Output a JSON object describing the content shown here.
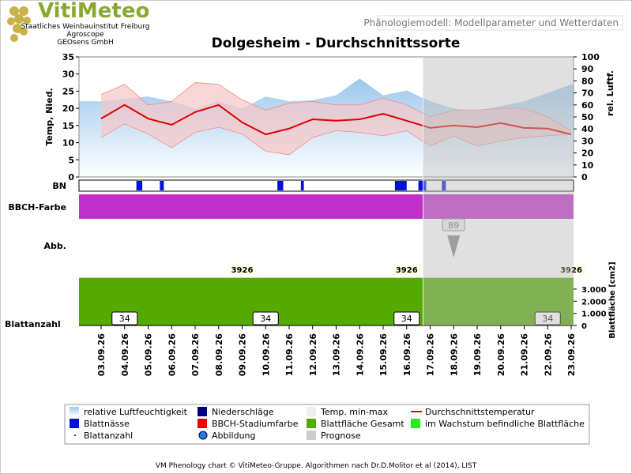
{
  "logo": {
    "name": "VitiMeteo",
    "lines": [
      "Staatliches Weinbauinstitut Freiburg",
      "Agroscope",
      "GEOsens GmbH"
    ]
  },
  "header": "Phänologiemodell: Modellparameter und Wetterdaten",
  "footer": "VM Phenology chart © VitiMeteo-Gruppe. Algorithmen nach Dr.D.Molitor et al (2014), LIST",
  "chart_data": {
    "type": "line",
    "title": "Dolgesheim - Durchschnittssorte",
    "ylabel": "Temp, Nied.",
    "y2label": "rel. Luftf.",
    "categories": [
      "03.09.26",
      "04.09.26",
      "05.09.26",
      "06.09.26",
      "07.09.26",
      "08.09.26",
      "09.09.26",
      "10.09.26",
      "11.09.26",
      "12.09.26",
      "13.09.26",
      "14.09.26",
      "15.09.26",
      "16.09.26",
      "17.09.26",
      "18.09.26",
      "19.09.26",
      "20.09.26",
      "21.09.26",
      "22.09.26",
      "23.09.26"
    ],
    "forecast_start": "17.09.26",
    "ylim": [
      0,
      35
    ],
    "yticks": [
      0,
      5,
      10,
      15,
      20,
      25,
      30,
      35
    ],
    "y2lim": [
      0,
      100
    ],
    "y2ticks": [
      0,
      10,
      20,
      30,
      40,
      50,
      60,
      70,
      80,
      90,
      100
    ],
    "series": [
      {
        "name": "relative Luftfeuchtigkeit",
        "color": "#9cc8ee",
        "axis": "y2",
        "values": [
          63,
          65,
          67,
          63,
          57,
          63,
          57,
          67,
          63,
          64,
          68,
          82,
          68,
          72,
          63,
          57,
          55,
          59,
          63,
          70,
          77
        ]
      },
      {
        "name": "Temp. min-max",
        "color": "#f6c6c6",
        "values": [
          24,
          27,
          21,
          22,
          27.5,
          27,
          22.5,
          19.5,
          21.5,
          22,
          21,
          21,
          23,
          21,
          17.5,
          19.5,
          19.5,
          20,
          20,
          17.5,
          13.5
        ],
        "lower": [
          11.5,
          15.5,
          12.5,
          8.5,
          13,
          14.5,
          12.5,
          7.5,
          6.5,
          11.5,
          13.5,
          13,
          12,
          13.5,
          9,
          12,
          9,
          10.5,
          11.5,
          12,
          12.5
        ]
      },
      {
        "name": "Durchschnittstemperatur",
        "color": "#e00000",
        "values": [
          17,
          21,
          17,
          15.2,
          18.9,
          21,
          15.9,
          12.4,
          14.1,
          16.8,
          16.4,
          16.8,
          18.4,
          16.4,
          14.3,
          15,
          14.5,
          15.7,
          14.3,
          14.1,
          12.4
        ]
      }
    ],
    "wetness": {
      "label": "BN",
      "name": "Blattnässe",
      "color": "#0010e0",
      "values": [
        0,
        0,
        6,
        4,
        0,
        0,
        0,
        0,
        6,
        3,
        0,
        0,
        0,
        12,
        8,
        4,
        0,
        0,
        0,
        0,
        0
      ]
    },
    "bbch": {
      "label": "BBCH-Farbe",
      "name": "BBCH-Stadiumfarbe",
      "color": "#c030c8",
      "stage": 89,
      "stage_at": "18.09.26"
    },
    "image": {
      "label": "Abb.",
      "name": "Abbildung"
    },
    "leaf_area": {
      "label": "Blattfläche [cm2]",
      "name": "Blattfläche Gesamt",
      "color": "#55aa00",
      "ylim": [
        0,
        4100
      ],
      "yticks": [
        0,
        {
          "value": 1000,
          "label": "1.000"
        },
        {
          "value": 2000,
          "label": "2.000"
        },
        {
          "value": 3000,
          "label": "3.000"
        }
      ],
      "values": [
        3926,
        3926,
        3926,
        3926,
        3926,
        3926,
        3926,
        3926,
        3926,
        3926,
        3926,
        3926,
        3926,
        3926,
        3926,
        3926,
        3926,
        3926,
        3926,
        3926,
        3926
      ]
    },
    "growing": {
      "name": "im Wachstum befindliche Blattfläche",
      "color": "#22ee22"
    },
    "leaf_count": {
      "label": "Blattanzahl",
      "name": "Blattanzahl",
      "values": [
        34,
        34,
        34,
        34,
        34,
        34,
        34,
        34,
        34,
        34,
        34,
        34,
        34,
        34,
        34,
        34,
        34,
        34,
        34,
        34,
        34
      ]
    },
    "precip": {
      "name": "Niederschläge",
      "color": "#000080"
    },
    "prognosis": {
      "name": "Prognose",
      "color": "#cccccc"
    }
  }
}
